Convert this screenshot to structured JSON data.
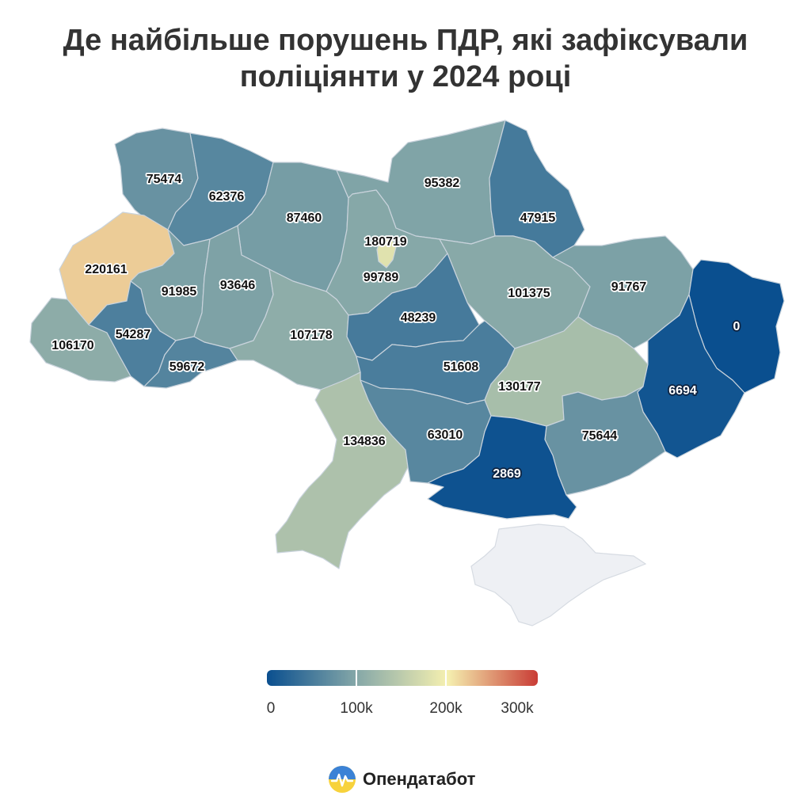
{
  "title": "Де найбільше порушень ПДР, які зафіксували поліціянти у 2024 році",
  "title_lines": [
    "Де найбільше порушень ПДР, які зафіксували",
    "поліціянти у 2024 році"
  ],
  "regions": [
    {
      "id": "volyn",
      "value": 75474
    },
    {
      "id": "rivne",
      "value": 62376
    },
    {
      "id": "zhytomyr",
      "value": 87460
    },
    {
      "id": "kyiv-city",
      "value": 180719
    },
    {
      "id": "chernihiv",
      "value": 95382
    },
    {
      "id": "sumy",
      "value": 47915
    },
    {
      "id": "lviv",
      "value": 220161
    },
    {
      "id": "ternopil",
      "value": 91985
    },
    {
      "id": "khmelnytskyi",
      "value": 93646
    },
    {
      "id": "kyiv-oblast",
      "value": 99789
    },
    {
      "id": "poltava",
      "value": 101375
    },
    {
      "id": "kharkiv",
      "value": 91767
    },
    {
      "id": "luhansk",
      "value": 0
    },
    {
      "id": "zakarpattia",
      "value": 106170
    },
    {
      "id": "ivano-frankivsk",
      "value": 54287
    },
    {
      "id": "chernivtsi",
      "value": 59672
    },
    {
      "id": "vinnytsia",
      "value": 107178
    },
    {
      "id": "cherkasy",
      "value": 48239
    },
    {
      "id": "kirovohrad",
      "value": 51608
    },
    {
      "id": "dnipropetrovsk",
      "value": 130177
    },
    {
      "id": "donetsk",
      "value": 6694
    },
    {
      "id": "odesa",
      "value": 134836
    },
    {
      "id": "mykolaiv",
      "value": 63010
    },
    {
      "id": "zaporizhzhia",
      "value": 75644
    },
    {
      "id": "kherson",
      "value": 2869
    }
  ],
  "legend": {
    "min": 0,
    "max": 300000,
    "colors": [
      "#0a4f8f",
      "#86a8a8",
      "#f5f0b0",
      "#c93c35"
    ],
    "ticks": [
      {
        "value": 0,
        "label": "0"
      },
      {
        "value": 100000,
        "label": "100k"
      },
      {
        "value": 200000,
        "label": "200k"
      },
      {
        "value": 300000,
        "label": "300k"
      }
    ]
  },
  "no_data_color": "#eef0f4",
  "brand": {
    "name": "Опендатабот",
    "logo_icon": "opendatabot-logo-icon"
  }
}
